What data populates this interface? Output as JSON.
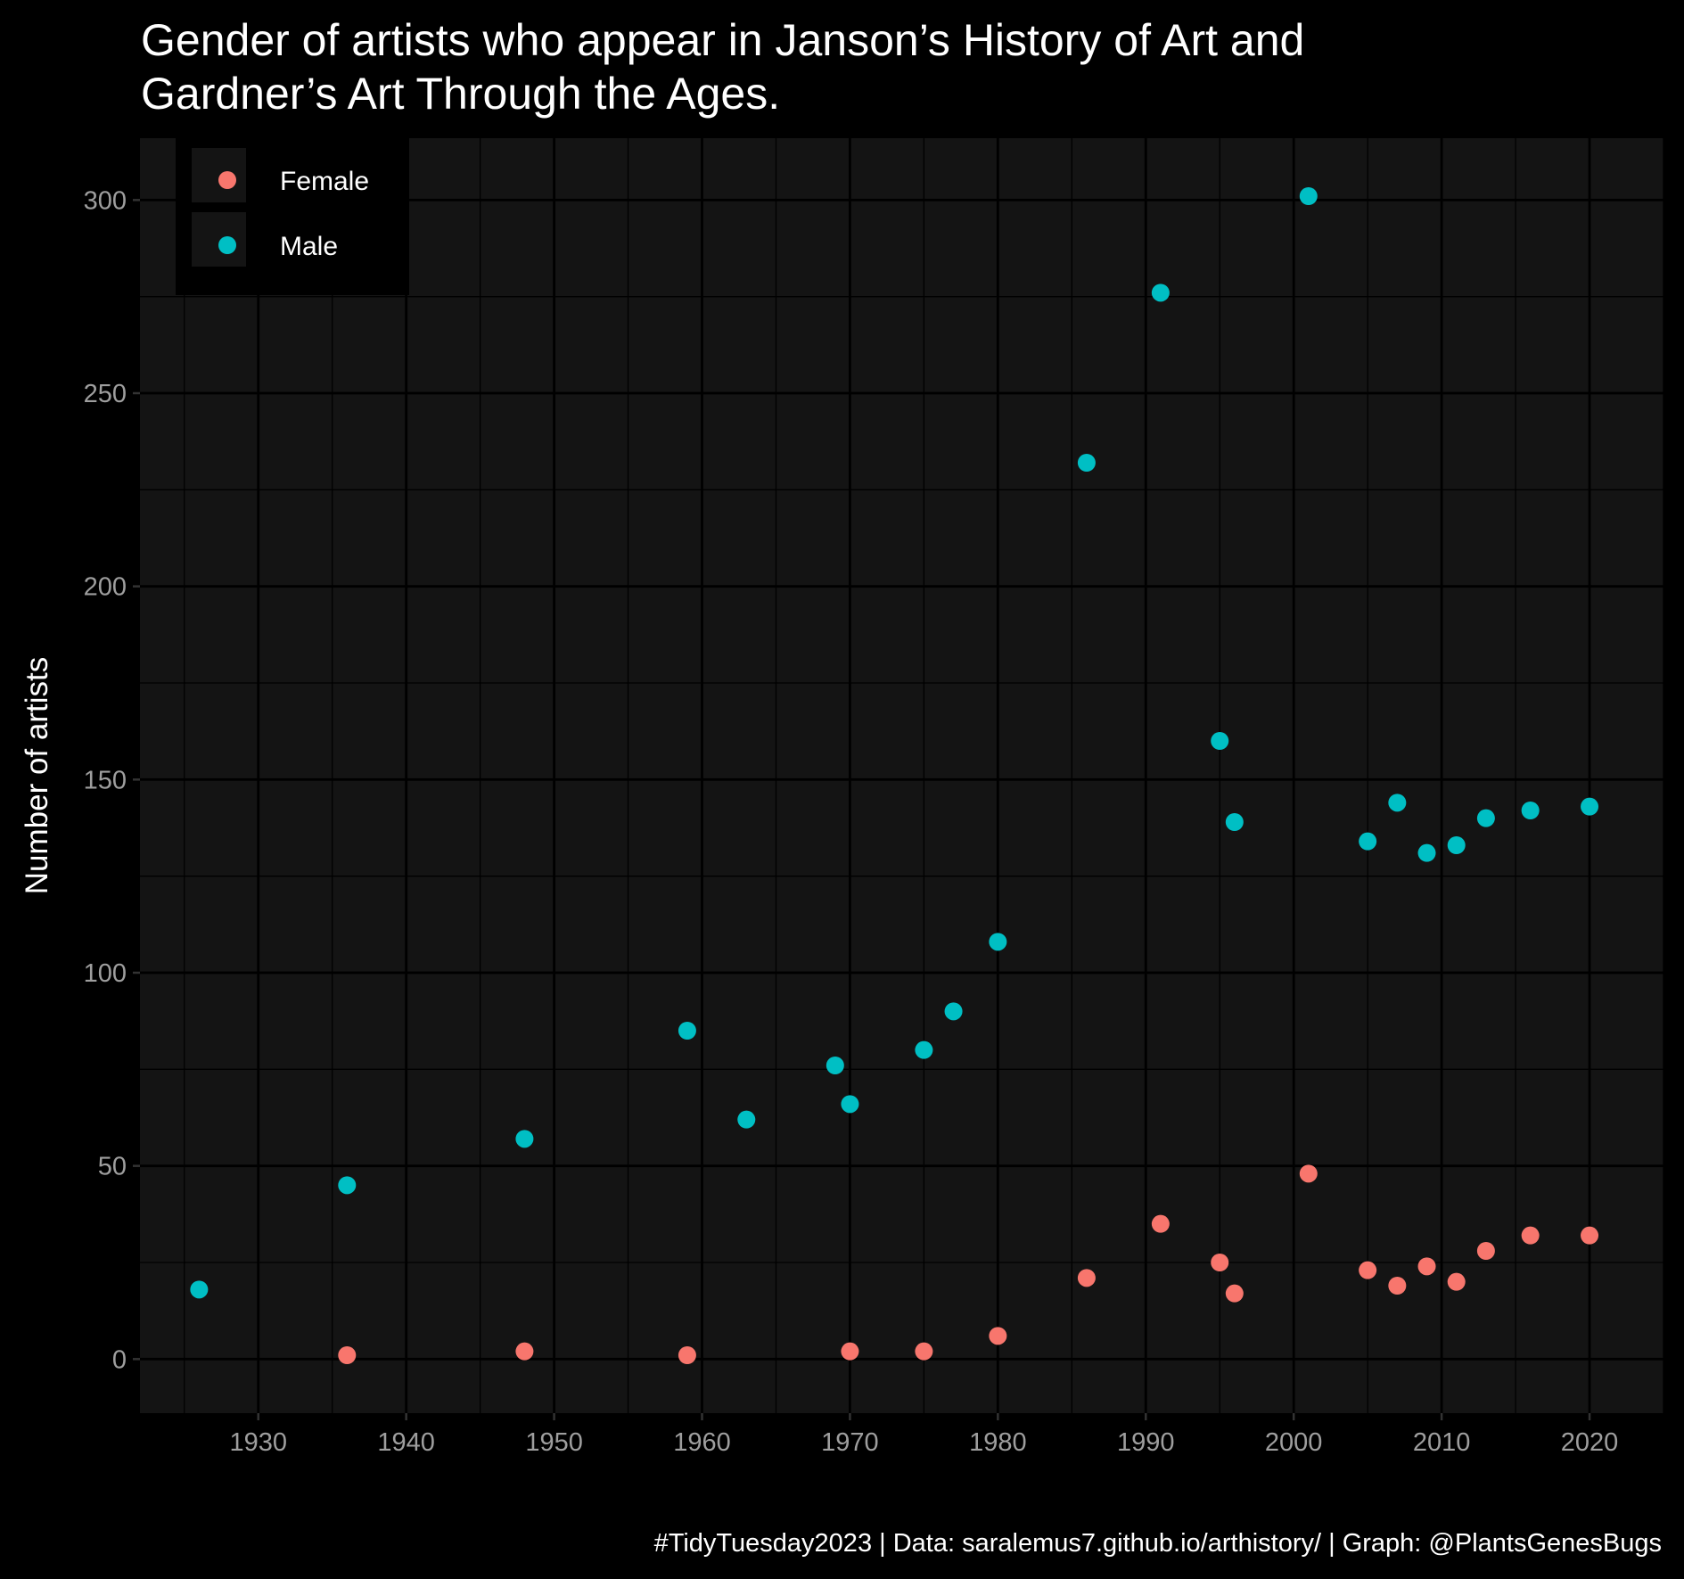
{
  "chart_data": {
    "type": "scatter",
    "title_lines": [
      "Gender of artists who appear in Janson’s History of Art and",
      "Gardner’s Art Through the Ages."
    ],
    "xlabel": "",
    "ylabel": "Number of artists",
    "caption": "#TidyTuesday2023  |  Data: saralemus7.github.io/arthistory/  |  Graph: @PlantsGenesBugs",
    "xlim": [
      1922,
      2025
    ],
    "ylim": [
      -14,
      316
    ],
    "x_ticks": [
      1930,
      1940,
      1950,
      1960,
      1970,
      1980,
      1990,
      2000,
      2010,
      2020
    ],
    "y_ticks": [
      0,
      50,
      100,
      150,
      200,
      250,
      300
    ],
    "grid": true,
    "legend_position": "top-left",
    "series": [
      {
        "name": "Female",
        "color": "#F8766D",
        "points": [
          {
            "x": 1936,
            "y": 1
          },
          {
            "x": 1948,
            "y": 2
          },
          {
            "x": 1959,
            "y": 1
          },
          {
            "x": 1970,
            "y": 2
          },
          {
            "x": 1975,
            "y": 2
          },
          {
            "x": 1980,
            "y": 6
          },
          {
            "x": 1986,
            "y": 21
          },
          {
            "x": 1991,
            "y": 35
          },
          {
            "x": 1995,
            "y": 25
          },
          {
            "x": 1996,
            "y": 17
          },
          {
            "x": 2001,
            "y": 48
          },
          {
            "x": 2005,
            "y": 23
          },
          {
            "x": 2007,
            "y": 19
          },
          {
            "x": 2009,
            "y": 24
          },
          {
            "x": 2011,
            "y": 20
          },
          {
            "x": 2013,
            "y": 28
          },
          {
            "x": 2016,
            "y": 32
          },
          {
            "x": 2020,
            "y": 32
          }
        ]
      },
      {
        "name": "Male",
        "color": "#00BFC4",
        "points": [
          {
            "x": 1926,
            "y": 18
          },
          {
            "x": 1936,
            "y": 45
          },
          {
            "x": 1948,
            "y": 57
          },
          {
            "x": 1959,
            "y": 85
          },
          {
            "x": 1963,
            "y": 62
          },
          {
            "x": 1969,
            "y": 76
          },
          {
            "x": 1970,
            "y": 66
          },
          {
            "x": 1975,
            "y": 80
          },
          {
            "x": 1977,
            "y": 90
          },
          {
            "x": 1980,
            "y": 108
          },
          {
            "x": 1986,
            "y": 232
          },
          {
            "x": 1991,
            "y": 276
          },
          {
            "x": 1995,
            "y": 160
          },
          {
            "x": 1996,
            "y": 139
          },
          {
            "x": 2001,
            "y": 301
          },
          {
            "x": 2005,
            "y": 134
          },
          {
            "x": 2007,
            "y": 144
          },
          {
            "x": 2009,
            "y": 131
          },
          {
            "x": 2011,
            "y": 133
          },
          {
            "x": 2013,
            "y": 140
          },
          {
            "x": 2016,
            "y": 142
          },
          {
            "x": 2020,
            "y": 143
          }
        ]
      }
    ],
    "colors": {
      "background": "#000000",
      "panel": "#141414",
      "grid": "#000000"
    }
  }
}
